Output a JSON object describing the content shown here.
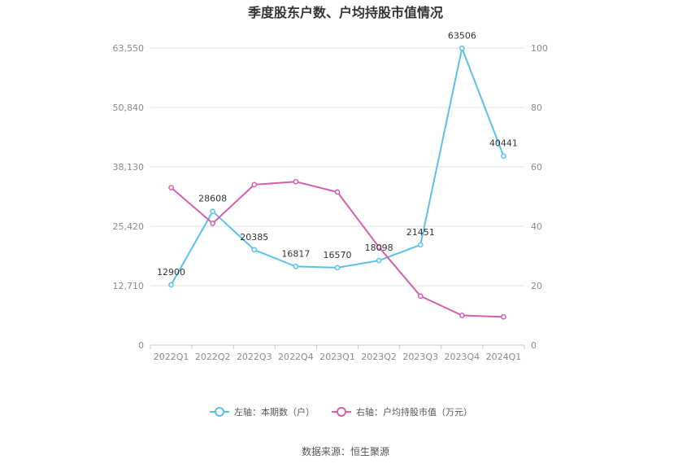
{
  "chart_data": {
    "type": "line",
    "title": "季度股东户数、户均持股市值情况",
    "categories": [
      "2022Q1",
      "2022Q2",
      "2022Q3",
      "2022Q4",
      "2023Q1",
      "2023Q2",
      "2023Q3",
      "2023Q4",
      "2024Q1"
    ],
    "series": [
      {
        "name": "左轴：本期数（户）",
        "axis": "left",
        "color": "#5bc0eb",
        "values": [
          12900,
          28608,
          20385,
          16817,
          16570,
          18098,
          21451,
          63506,
          40441
        ],
        "labels": [
          "12900",
          "28608",
          "20385",
          "16817",
          "16570",
          "18098",
          "21451",
          "63506",
          "40441"
        ]
      },
      {
        "name": "右轴：户均持股市值（万元）",
        "axis": "right",
        "color": "#d45fac",
        "values": [
          53,
          41,
          54,
          55,
          51.5,
          33,
          16.5,
          10,
          9.5
        ]
      }
    ],
    "left_axis": {
      "ylim": [
        0,
        63550
      ],
      "ticks": [
        "0",
        "12,710",
        "25,420",
        "38,130",
        "50,840",
        "63,550"
      ]
    },
    "right_axis": {
      "ylim": [
        0,
        100
      ],
      "ticks": [
        "0",
        "20",
        "40",
        "60",
        "80",
        "100"
      ]
    },
    "grid": true,
    "legend_position": "bottom"
  },
  "source": "数据来源：恒生聚源"
}
